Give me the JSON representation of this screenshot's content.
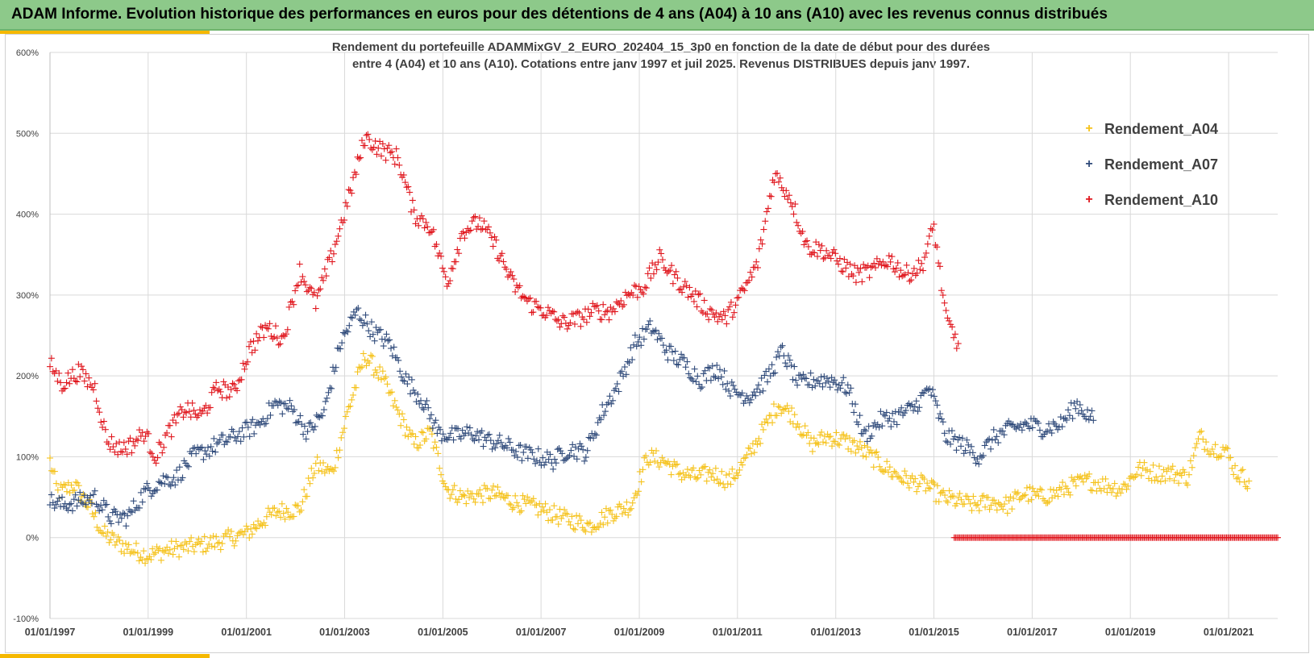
{
  "header": {
    "title": "ADAM Informe. Evolution historique des performances en euros pour des détentions de 4 ans (A04) à 10 ans (A10) avec les revenus connus distribués"
  },
  "colors": {
    "banner": "#8dc98a",
    "accent": "#f5b800",
    "a04": "#f5c21b",
    "a07": "#2f4a7a",
    "a10": "#e0161d"
  },
  "chart_data": {
    "type": "scatter",
    "title_line1": "Rendement du portefeuille ADAMMixGV_2_EURO_202404_15_3p0 en fonction de la date de début pour des durées",
    "title_line2": "entre 4 (A04) et 10 ans (A10). Cotations entre janv 1997 et juil 2025. Revenus DISTRIBUES depuis janv 1997.",
    "ylim": [
      -100,
      600
    ],
    "xlim": [
      "1997-01-01",
      "2022-01-01"
    ],
    "ytick_labels": [
      "-100%",
      "0%",
      "100%",
      "200%",
      "300%",
      "400%",
      "500%",
      "600%"
    ],
    "xtick_labels": [
      "01/01/1997",
      "01/01/1999",
      "01/01/2001",
      "01/01/2003",
      "01/01/2005",
      "01/01/2007",
      "01/01/2009",
      "01/01/2011",
      "01/01/2013",
      "01/01/2015",
      "01/01/2017",
      "01/01/2019",
      "01/01/2021"
    ],
    "grid": true,
    "legend_position": "top-right",
    "series": [
      {
        "name": "Rendement_A04",
        "x": [
          "1997-01-01",
          "1997-03-01",
          "1997-07-01",
          "1997-11-01",
          "1998-02-01",
          "1998-05-01",
          "1998-09-01",
          "1999-01-01",
          "1999-06-01",
          "2000-01-01",
          "2000-06-01",
          "2001-01-01",
          "2001-06-01",
          "2001-09-01",
          "2002-02-01",
          "2002-06-01",
          "2002-10-01",
          "2003-02-01",
          "2003-06-01",
          "2003-10-01",
          "2004-02-01",
          "2004-06-01",
          "2004-10-01",
          "2005-02-01",
          "2005-06-01",
          "2006-01-01",
          "2006-06-01",
          "2007-01-01",
          "2007-06-01",
          "2008-01-01",
          "2008-06-01",
          "2008-11-01",
          "2009-03-01",
          "2009-07-01",
          "2009-11-01",
          "2010-03-01",
          "2010-07-01",
          "2010-11-01",
          "2011-03-01",
          "2011-07-01",
          "2011-11-01",
          "2012-03-01",
          "2012-07-01",
          "2012-11-01",
          "2013-03-01",
          "2013-07-01",
          "2013-11-01",
          "2014-03-01",
          "2014-07-01",
          "2014-11-01",
          "2015-03-01",
          "2015-07-01",
          "2015-11-01",
          "2016-03-01",
          "2016-07-01",
          "2016-11-01",
          "2017-03-01",
          "2017-07-01",
          "2017-11-01",
          "2018-03-01",
          "2018-07-01",
          "2018-11-01",
          "2019-03-01",
          "2019-07-01",
          "2019-11-01",
          "2020-03-01",
          "2020-06-01",
          "2020-09-01",
          "2020-12-01",
          "2021-03-01",
          "2021-06-01"
        ],
        "y": [
          95,
          55,
          65,
          35,
          5,
          -5,
          -15,
          -22,
          -15,
          -10,
          -5,
          5,
          25,
          33,
          35,
          90,
          80,
          160,
          225,
          200,
          155,
          115,
          130,
          60,
          50,
          55,
          45,
          35,
          25,
          15,
          30,
          40,
          100,
          95,
          80,
          75,
          80,
          70,
          95,
          130,
          165,
          150,
          115,
          125,
          120,
          110,
          95,
          80,
          70,
          65,
          50,
          45,
          40,
          45,
          40,
          55,
          50,
          55,
          65,
          70,
          65,
          60,
          85,
          80,
          80,
          75,
          125,
          110,
          110,
          80,
          70
        ]
      },
      {
        "name": "Rendement_A07",
        "x": [
          "1997-01-01",
          "1997-04-01",
          "1997-08-01",
          "1997-12-01",
          "1998-04-01",
          "1998-08-01",
          "1998-12-01",
          "1999-04-01",
          "1999-08-01",
          "1999-12-01",
          "2000-04-01",
          "2000-08-01",
          "2000-12-01",
          "2001-04-01",
          "2001-08-01",
          "2001-12-01",
          "2002-04-01",
          "2002-08-01",
          "2002-12-01",
          "2003-04-01",
          "2003-08-01",
          "2003-12-01",
          "2004-04-01",
          "2004-08-01",
          "2004-12-01",
          "2005-04-01",
          "2005-08-01",
          "2005-12-01",
          "2006-04-01",
          "2006-08-01",
          "2006-12-01",
          "2007-04-01",
          "2007-08-01",
          "2007-12-01",
          "2008-04-01",
          "2008-08-01",
          "2008-12-01",
          "2009-04-01",
          "2009-08-01",
          "2009-12-01",
          "2010-04-01",
          "2010-08-01",
          "2010-12-01",
          "2011-04-01",
          "2011-08-01",
          "2011-12-01",
          "2012-04-01",
          "2012-08-01",
          "2012-12-01",
          "2013-04-01",
          "2013-08-01",
          "2013-12-01",
          "2014-04-01",
          "2014-08-01",
          "2014-12-01",
          "2015-04-01",
          "2015-08-01",
          "2015-12-01",
          "2016-04-01",
          "2016-08-01",
          "2016-12-01",
          "2017-04-01",
          "2017-08-01",
          "2017-12-01",
          "2018-04-01"
        ],
        "y": [
          45,
          40,
          45,
          50,
          25,
          25,
          55,
          70,
          75,
          100,
          110,
          120,
          130,
          140,
          165,
          160,
          130,
          155,
          240,
          280,
          255,
          240,
          195,
          170,
          130,
          125,
          130,
          120,
          115,
          105,
          100,
          95,
          110,
          105,
          155,
          190,
          240,
          260,
          230,
          215,
          195,
          210,
          180,
          175,
          195,
          230,
          190,
          195,
          195,
          185,
          125,
          145,
          150,
          160,
          185,
          125,
          115,
          100,
          125,
          135,
          140,
          135,
          140,
          165,
          145
        ]
      },
      {
        "name": "Rendement_A10",
        "x": [
          "1997-01-01",
          "1997-04-01",
          "1997-08-01",
          "1997-12-01",
          "1998-03-01",
          "1998-06-01",
          "1998-09-01",
          "1998-12-01",
          "1999-03-01",
          "1999-06-01",
          "1999-10-01",
          "2000-02-01",
          "2000-06-01",
          "2000-10-01",
          "2001-02-01",
          "2001-06-01",
          "2001-10-01",
          "2002-02-01",
          "2002-06-01",
          "2002-10-01",
          "2003-02-01",
          "2003-06-01",
          "2003-10-01",
          "2004-02-01",
          "2004-06-01",
          "2004-10-01",
          "2005-02-01",
          "2005-06-01",
          "2005-10-01",
          "2006-02-01",
          "2006-06-01",
          "2006-10-01",
          "2007-02-01",
          "2007-06-01",
          "2007-10-01",
          "2008-02-01",
          "2008-06-01",
          "2008-10-01",
          "2009-02-01",
          "2009-06-01",
          "2009-10-01",
          "2010-02-01",
          "2010-06-01",
          "2010-10-01",
          "2011-02-01",
          "2011-06-01",
          "2011-10-01",
          "2012-02-01",
          "2012-06-01",
          "2012-10-01",
          "2013-02-01",
          "2013-06-01",
          "2013-10-01",
          "2014-02-01",
          "2014-06-01",
          "2014-10-01",
          "2015-01-01",
          "2015-04-01",
          "2015-07-01"
        ],
        "y": [
          215,
          190,
          205,
          185,
          120,
          110,
          115,
          130,
          100,
          130,
          160,
          150,
          185,
          180,
          235,
          260,
          245,
          330,
          290,
          350,
          420,
          495,
          480,
          470,
          400,
          385,
          315,
          380,
          390,
          360,
          315,
          290,
          280,
          265,
          270,
          280,
          280,
          300,
          310,
          345,
          320,
          300,
          280,
          270,
          300,
          340,
          450,
          420,
          360,
          355,
          340,
          325,
          330,
          345,
          325,
          335,
          385,
          270,
          240
        ]
      },
      {
        "name": "",
        "x_range": [
          "2015-06-01",
          "2022-01-01"
        ],
        "y": 0,
        "color": "#e0161d"
      }
    ]
  }
}
